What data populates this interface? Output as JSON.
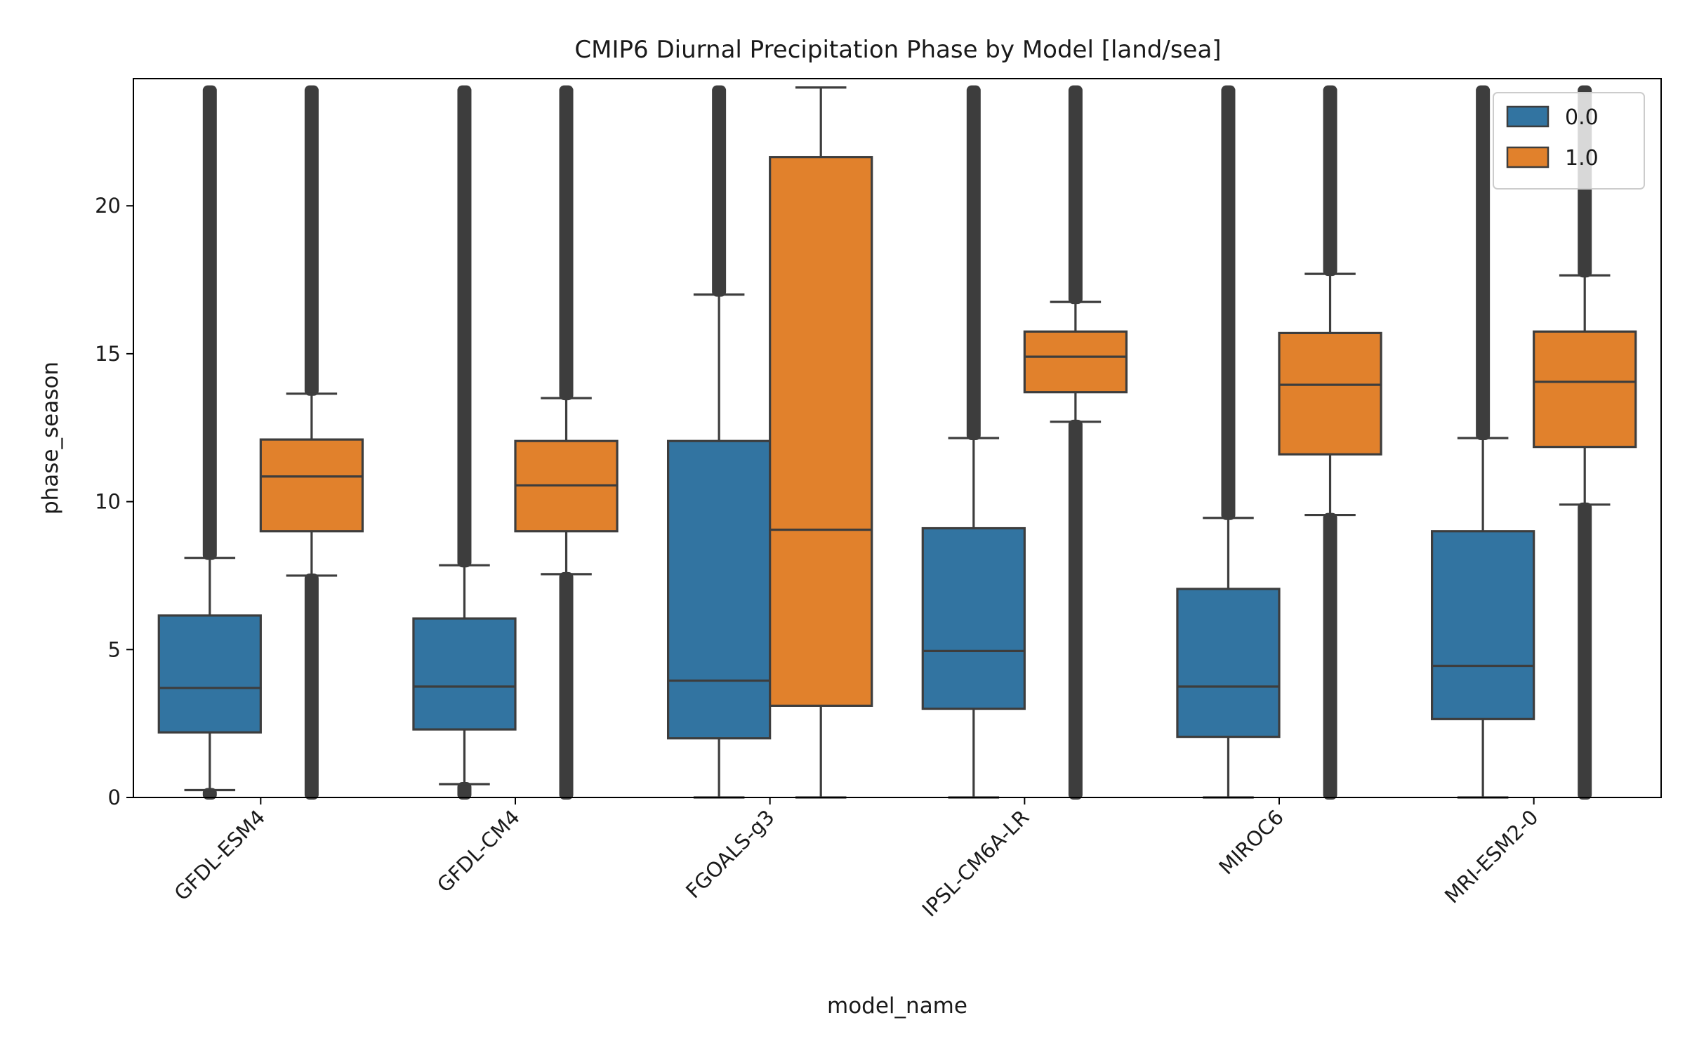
{
  "chart_data": {
    "type": "box",
    "title": "CMIP6 Diurnal Precipitation Phase by Model [land/sea]",
    "xlabel": "model_name",
    "ylabel": "phase_season",
    "ylim": [
      0,
      24.3
    ],
    "y_ticks": [
      0,
      5,
      10,
      15,
      20
    ],
    "grid": false,
    "legend_position": "top-right",
    "categories": [
      "GFDL-ESM4",
      "GFDL-CM4",
      "FGOALS-g3",
      "IPSL-CM6A-LR",
      "MIROC6",
      "MRI-ESM2-0"
    ],
    "series": [
      {
        "name": "0.0",
        "color": "#3274a1",
        "boxes": [
          {
            "whisker_low": 0.25,
            "q1": 2.2,
            "median": 3.7,
            "q3": 6.15,
            "whisker_high": 8.1,
            "outliers_low": [
              0.0,
              0.25
            ],
            "outliers_high": [
              8.1,
              24.0
            ]
          },
          {
            "whisker_low": 0.45,
            "q1": 2.3,
            "median": 3.75,
            "q3": 6.05,
            "whisker_high": 7.85,
            "outliers_low": [
              0.0,
              0.45
            ],
            "outliers_high": [
              7.85,
              24.0
            ]
          },
          {
            "whisker_low": 0.0,
            "q1": 2.0,
            "median": 3.95,
            "q3": 12.05,
            "whisker_high": 17.0,
            "outliers_low": [],
            "outliers_high": [
              17.0,
              24.0
            ]
          },
          {
            "whisker_low": 0.0,
            "q1": 3.0,
            "median": 4.95,
            "q3": 9.1,
            "whisker_high": 12.15,
            "outliers_low": [],
            "outliers_high": [
              12.15,
              24.0
            ]
          },
          {
            "whisker_low": 0.0,
            "q1": 2.05,
            "median": 3.75,
            "q3": 7.05,
            "whisker_high": 9.45,
            "outliers_low": [],
            "outliers_high": [
              9.45,
              24.0
            ]
          },
          {
            "whisker_low": 0.0,
            "q1": 2.65,
            "median": 4.45,
            "q3": 9.0,
            "whisker_high": 12.15,
            "outliers_low": [],
            "outliers_high": [
              12.15,
              24.0
            ]
          }
        ]
      },
      {
        "name": "1.0",
        "color": "#e1812c",
        "boxes": [
          {
            "whisker_low": 7.5,
            "q1": 9.0,
            "median": 10.85,
            "q3": 12.1,
            "whisker_high": 13.65,
            "outliers_low": [
              0.0,
              7.5
            ],
            "outliers_high": [
              13.65,
              24.0
            ]
          },
          {
            "whisker_low": 7.55,
            "q1": 9.0,
            "median": 10.55,
            "q3": 12.05,
            "whisker_high": 13.5,
            "outliers_low": [
              0.0,
              7.55
            ],
            "outliers_high": [
              13.5,
              24.0
            ]
          },
          {
            "whisker_low": 0.0,
            "q1": 3.1,
            "median": 9.05,
            "q3": 21.65,
            "whisker_high": 24.0,
            "outliers_low": [],
            "outliers_high": []
          },
          {
            "whisker_low": 12.7,
            "q1": 13.7,
            "median": 14.9,
            "q3": 15.75,
            "whisker_high": 16.75,
            "outliers_low": [
              0.0,
              12.7
            ],
            "outliers_high": [
              16.75,
              24.0
            ]
          },
          {
            "whisker_low": 9.55,
            "q1": 11.6,
            "median": 13.95,
            "q3": 15.7,
            "whisker_high": 17.7,
            "outliers_low": [
              0.0,
              9.55
            ],
            "outliers_high": [
              17.7,
              24.0
            ]
          },
          {
            "whisker_low": 9.9,
            "q1": 11.85,
            "median": 14.05,
            "q3": 15.75,
            "whisker_high": 17.65,
            "outliers_low": [
              0.0,
              9.9
            ],
            "outliers_high": [
              17.65,
              24.0
            ]
          }
        ]
      }
    ]
  }
}
